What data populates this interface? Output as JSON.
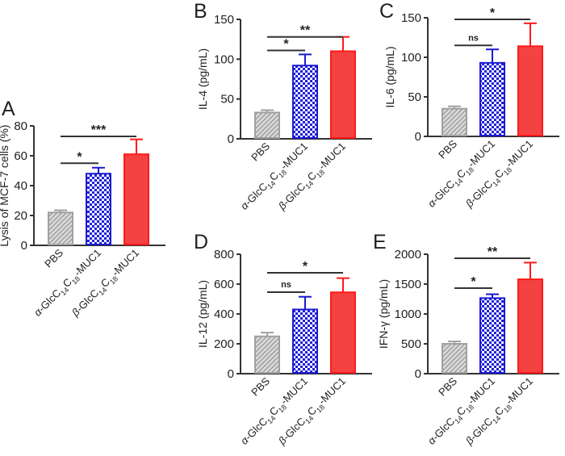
{
  "colors": {
    "pbs": "#a0a0a0",
    "alpha": "#1a1ad0",
    "beta": "#f44242",
    "axis": "#333333"
  },
  "chart_data": [
    {
      "type": "bar",
      "panel": "A",
      "ylabel": "Lysis of MCF-7 cells (%)",
      "ylim": [
        0,
        80
      ],
      "yticks": [
        0,
        20,
        40,
        60,
        80
      ],
      "categories": [
        "PBS",
        "α-GlcC14C18-MUC1",
        "β-GlcC14C18-MUC1"
      ],
      "values": [
        22,
        48,
        61
      ],
      "errors": [
        1.5,
        4,
        10
      ],
      "significance": [
        {
          "from": 0,
          "to": 1,
          "label": "*",
          "level": 55
        },
        {
          "from": 0,
          "to": 2,
          "label": "***",
          "level": 73
        }
      ]
    },
    {
      "type": "bar",
      "panel": "B",
      "ylabel": "IL-4 (pg/mL)",
      "ylim": [
        0,
        150
      ],
      "yticks": [
        0,
        50,
        100,
        150
      ],
      "categories": [
        "PBS",
        "α-GlcC14C18-MUC1",
        "β-GlcC14C18-MUC1"
      ],
      "values": [
        33,
        92,
        110
      ],
      "errors": [
        3,
        14,
        18
      ],
      "significance": [
        {
          "from": 0,
          "to": 1,
          "label": "*",
          "level": 111
        },
        {
          "from": 0,
          "to": 2,
          "label": "**",
          "level": 128
        }
      ]
    },
    {
      "type": "bar",
      "panel": "C",
      "ylabel": "IL-6 (pg/mL)",
      "ylim": [
        0,
        150
      ],
      "yticks": [
        0,
        50,
        100,
        150
      ],
      "categories": [
        "PBS",
        "α-GlcC14C18-MUC1",
        "β-GlcC14C18-MUC1"
      ],
      "values": [
        35,
        93,
        114
      ],
      "errors": [
        3,
        17,
        29
      ],
      "significance": [
        {
          "from": 0,
          "to": 1,
          "label": "ns",
          "level": 115
        },
        {
          "from": 0,
          "to": 2,
          "label": "*",
          "level": 148
        }
      ]
    },
    {
      "type": "bar",
      "panel": "D",
      "ylabel": "IL-12 (pg/mL)",
      "ylim": [
        0,
        800
      ],
      "yticks": [
        0,
        200,
        400,
        600,
        800
      ],
      "categories": [
        "PBS",
        "α-GlcC14C18-MUC1",
        "β-GlcC14C18-MUC1"
      ],
      "values": [
        250,
        430,
        545
      ],
      "errors": [
        25,
        85,
        95
      ],
      "significance": [
        {
          "from": 0,
          "to": 1,
          "label": "ns",
          "level": 546
        },
        {
          "from": 0,
          "to": 2,
          "label": "*",
          "level": 676
        }
      ]
    },
    {
      "type": "bar",
      "panel": "E",
      "ylabel": "IFN-γ (pg/mL)",
      "ylim": [
        0,
        2000
      ],
      "yticks": [
        0,
        500,
        1000,
        1500,
        2000
      ],
      "categories": [
        "PBS",
        "α-GlcC14C18-MUC1",
        "β-GlcC14C18-MUC1"
      ],
      "values": [
        500,
        1265,
        1580
      ],
      "errors": [
        40,
        65,
        280
      ],
      "significance": [
        {
          "from": 0,
          "to": 1,
          "label": "*",
          "level": 1432
        },
        {
          "from": 0,
          "to": 2,
          "label": "**",
          "level": 1932
        }
      ]
    }
  ]
}
